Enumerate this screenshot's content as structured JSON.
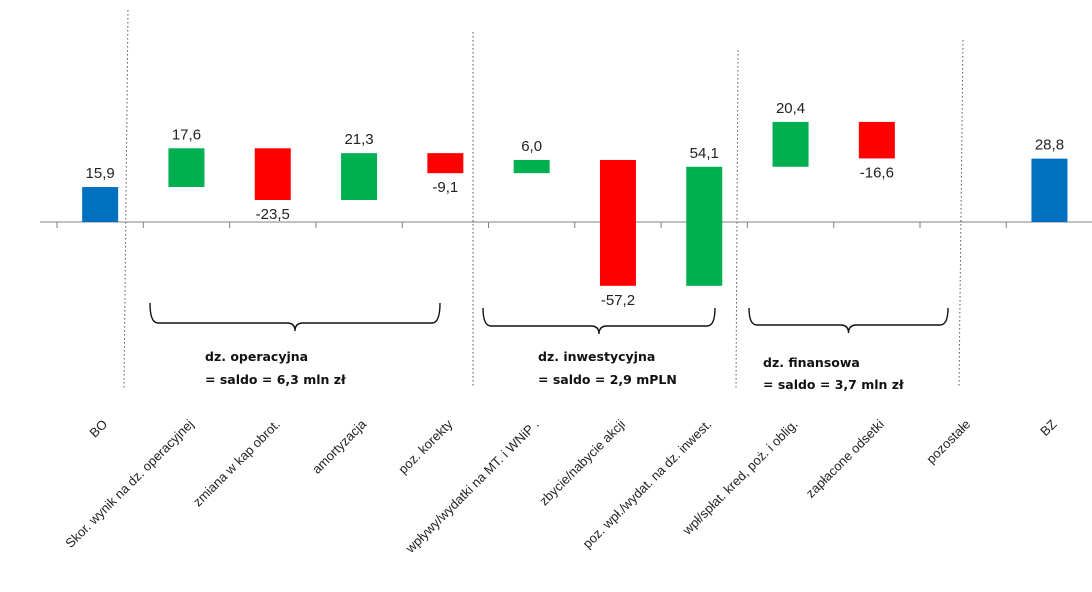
{
  "chart_data": {
    "type": "bar",
    "subtype": "waterfall",
    "categories": [
      "BO",
      "Skor. wynik na dz. operacyjnej",
      "zmiana w kap obrot.",
      "amortyzacja",
      "poz. korekty",
      "wpływy/wydatki na MT. i WNiP .",
      "zbycie/nabycie akcji",
      "poz. wpł./wydat. na dz. inwest.",
      "wpł/spłat. kred, poż. i oblig.",
      "zapłacone odsetki",
      "pozostałe",
      "BZ"
    ],
    "values": [
      15.9,
      17.6,
      -23.5,
      21.3,
      -9.1,
      6.0,
      -57.2,
      54.1,
      20.4,
      -16.6,
      0,
      28.8
    ],
    "value_labels": [
      "15,9",
      "17,6",
      "-23,5",
      "21,3",
      "-9,1",
      "6,0",
      "-57,2",
      "54,1",
      "20,4",
      "-16,6",
      "",
      "28,8"
    ],
    "kinds": [
      "total",
      "up",
      "down",
      "up",
      "down",
      "up",
      "down",
      "up",
      "up",
      "down",
      "none",
      "total"
    ],
    "colors": {
      "total": "#0070C0",
      "up": "#00B050",
      "down": "#FF0000"
    },
    "grid": false,
    "legend": "none",
    "groups": [
      {
        "line1": "dz. operacyjna",
        "line2": "= saldo =  6,3 mln zł"
      },
      {
        "line1": "dz. inwestycyjna",
        "line2": "= saldo = 2,9 mPLN"
      },
      {
        "line1": "dz. finansowa",
        "line2": "= saldo =  3,7 mln zł"
      }
    ]
  }
}
